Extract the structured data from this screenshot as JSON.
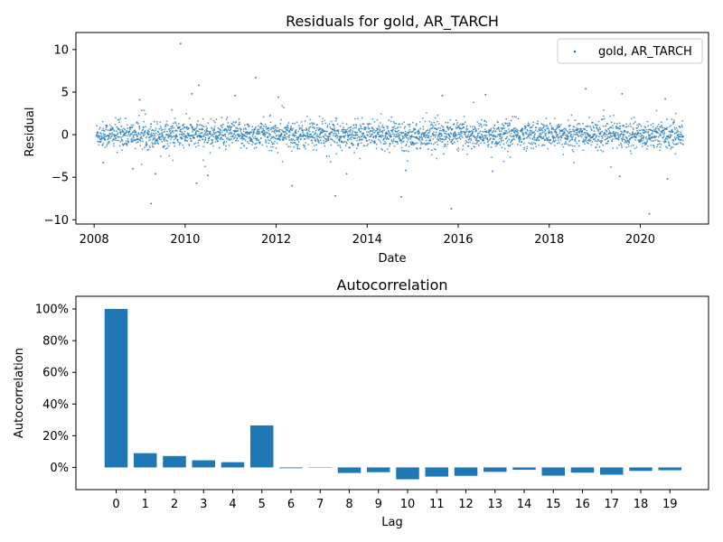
{
  "chart_data": [
    {
      "type": "scatter",
      "title": "Residuals for gold, AR_TARCH",
      "xlabel": "Date",
      "ylabel": "Residual",
      "xlim": [
        2007.6,
        2021.5
      ],
      "ylim": [
        -10.5,
        12
      ],
      "x_ticks": [
        2008,
        2010,
        2012,
        2014,
        2016,
        2018,
        2020
      ],
      "x_tick_labels": [
        "2008",
        "2010",
        "2012",
        "2014",
        "2016",
        "2018",
        "2020"
      ],
      "y_ticks": [
        -10,
        -5,
        0,
        5,
        10
      ],
      "y_tick_labels": [
        "−10",
        "−5",
        "0",
        "5",
        "10"
      ],
      "legend": {
        "label": "gold, AR_TARCH",
        "placement": "top-right"
      },
      "color": "#1f77b4",
      "x_range": [
        2008.05,
        2020.95
      ],
      "typical_spread": 1.0,
      "series": [
        {
          "name": "gold, AR_TARCH",
          "outliers": [
            {
              "x": 2009.9,
              "y": 10.7
            },
            {
              "x": 2011.55,
              "y": 6.7
            },
            {
              "x": 2010.3,
              "y": 5.8
            },
            {
              "x": 2018.8,
              "y": 5.4
            },
            {
              "x": 2010.15,
              "y": 4.8
            },
            {
              "x": 2019.6,
              "y": 4.8
            },
            {
              "x": 2016.6,
              "y": 4.7
            },
            {
              "x": 2015.65,
              "y": 4.6
            },
            {
              "x": 2011.1,
              "y": 4.6
            },
            {
              "x": 2012.05,
              "y": 4.4
            },
            {
              "x": 2020.55,
              "y": 4.2
            },
            {
              "x": 2009.0,
              "y": 4.1
            },
            {
              "x": 2009.25,
              "y": -8.1
            },
            {
              "x": 2015.85,
              "y": -8.7
            },
            {
              "x": 2020.2,
              "y": -9.3
            },
            {
              "x": 2014.75,
              "y": -7.3
            },
            {
              "x": 2013.3,
              "y": -7.2
            },
            {
              "x": 2012.35,
              "y": -6.0
            },
            {
              "x": 2010.25,
              "y": -5.7
            },
            {
              "x": 2010.5,
              "y": -4.8
            },
            {
              "x": 2009.35,
              "y": -4.6
            },
            {
              "x": 2013.55,
              "y": -4.6
            },
            {
              "x": 2019.55,
              "y": -4.9
            },
            {
              "x": 2020.6,
              "y": -5.2
            },
            {
              "x": 2014.85,
              "y": -4.2
            },
            {
              "x": 2016.75,
              "y": -4.3
            },
            {
              "x": 2008.85,
              "y": -4.0
            },
            {
              "x": 2008.2,
              "y": -3.3
            }
          ]
        }
      ]
    },
    {
      "type": "bar",
      "title": "Autocorrelation",
      "xlabel": "Lag",
      "ylabel": "Autocorrelation",
      "categories": [
        "0",
        "1",
        "2",
        "3",
        "4",
        "5",
        "6",
        "7",
        "8",
        "9",
        "10",
        "11",
        "12",
        "13",
        "14",
        "15",
        "16",
        "17",
        "18",
        "19"
      ],
      "values": [
        1.0,
        0.09,
        0.072,
        0.045,
        0.033,
        0.265,
        -0.005,
        0.0,
        -0.035,
        -0.03,
        -0.075,
        -0.058,
        -0.053,
        -0.028,
        -0.015,
        -0.052,
        -0.033,
        -0.046,
        -0.022,
        -0.018
      ],
      "ylim": [
        -0.14,
        1.08
      ],
      "y_ticks": [
        0,
        0.2,
        0.4,
        0.6,
        0.8,
        1.0
      ],
      "y_tick_labels": [
        "0%",
        "20%",
        "40%",
        "60%",
        "80%",
        "100%"
      ],
      "color": "#1f77b4"
    }
  ]
}
